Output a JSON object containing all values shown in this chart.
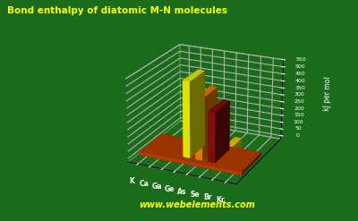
{
  "title": "Bond enthalpy of diatomic M-N molecules",
  "title_color": "#FFFF00",
  "background_color": "#1a6b1a",
  "ylabel": "kJ per mol",
  "website": "www.webelements.com",
  "website_color": "#FFFF00",
  "elements": [
    "K",
    "Ca",
    "Ga",
    "Ge",
    "As",
    "Se",
    "Br",
    "Kr"
  ],
  "values": [
    0,
    0,
    0,
    530,
    430,
    350,
    100,
    0
  ],
  "bar_colors": [
    "#cc88ff",
    "#cc88ff",
    "#FFFF44",
    "#FFFF00",
    "#FF8800",
    "#8B1010",
    "#FFDD00",
    "#FFDD00"
  ],
  "dot_colors": [
    "#aa88cc",
    "#aa88cc",
    "#FFFF44",
    "#FFFF44",
    "#FF8800",
    "#8B1010",
    "#FFDD00",
    "#FFDD00"
  ],
  "platform_color": "#CC4400",
  "ylim": [
    0,
    550
  ],
  "yticks": [
    0,
    50,
    100,
    150,
    200,
    250,
    300,
    350,
    400,
    450,
    500,
    550
  ]
}
